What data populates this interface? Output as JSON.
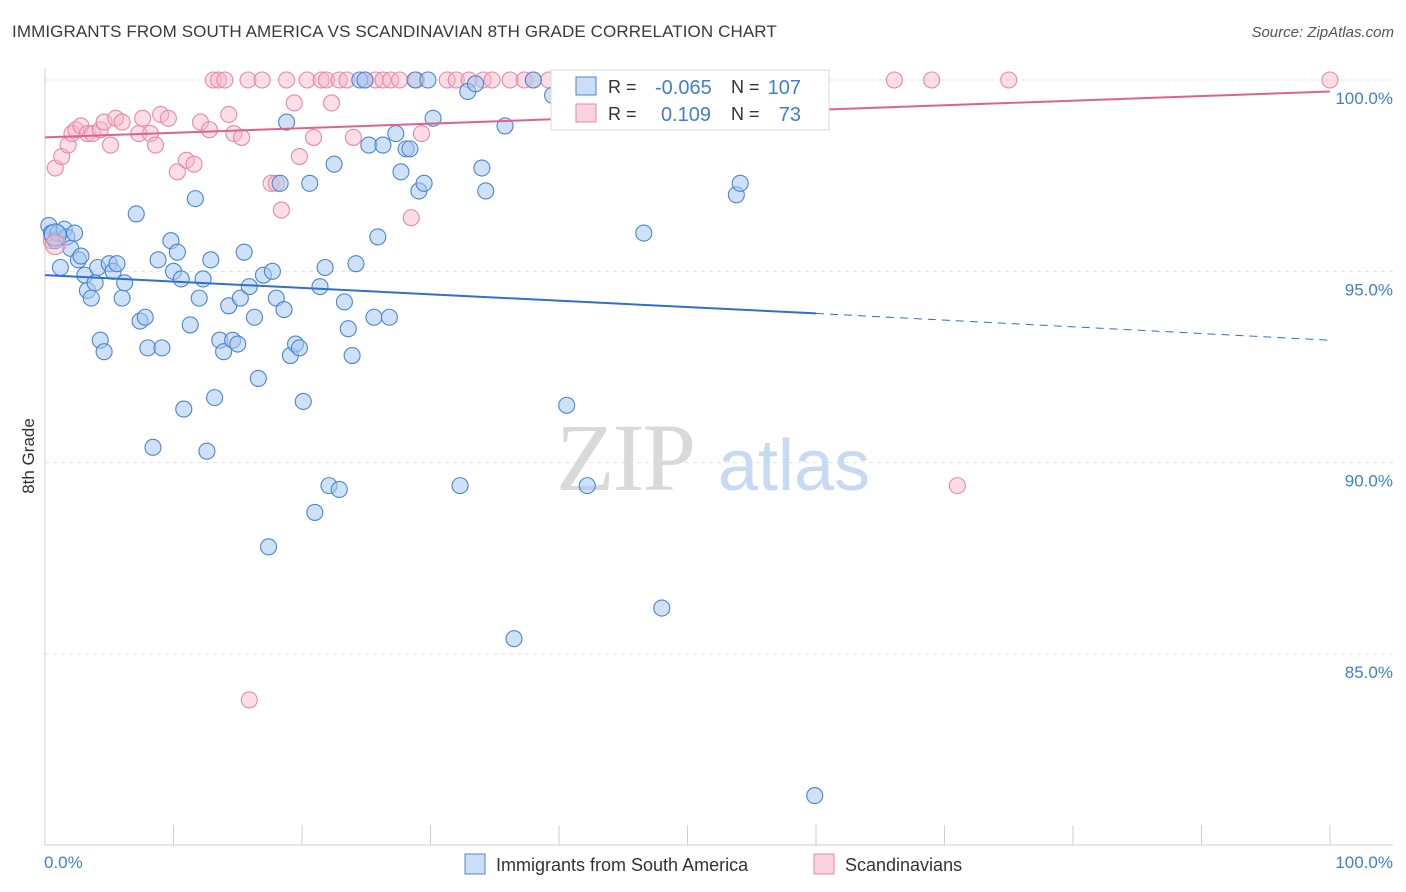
{
  "title": "IMMIGRANTS FROM SOUTH AMERICA VS SCANDINAVIAN 8TH GRADE CORRELATION CHART",
  "source": "Source: ZipAtlas.com",
  "watermark": {
    "zip": "ZIP",
    "atlas": "atlas"
  },
  "colors": {
    "blue": "#4a86d4",
    "pink": "#e8789c",
    "tick": "#3f7fd3"
  },
  "legend_top": [
    {
      "key": "blue",
      "r_label": "R =",
      "r_value": "-0.065",
      "n_label": "N =",
      "n_value": "107"
    },
    {
      "key": "pink",
      "r_label": "R =",
      "r_value": "0.109",
      "n_label": "N =",
      "n_value": "73"
    }
  ],
  "chart_data": {
    "type": "scatter",
    "ylabel": "8th Grade",
    "x_tick_labels": [
      "0.0%",
      "100.0%"
    ],
    "y_tick_labels": [
      "100.0%",
      "95.0%",
      "90.0%",
      "85.0%"
    ],
    "y_ticks": [
      100,
      95,
      90,
      85
    ],
    "xlim": [
      0,
      100
    ],
    "ylim": [
      80.4,
      100.8
    ],
    "grid": true,
    "legend_position": "bottom",
    "series": [
      {
        "name": "Immigrants from South America",
        "color": "#4a86d4",
        "trend": {
          "x0": 0,
          "y0": 94.9,
          "x1": 60,
          "y1": 93.9,
          "x_dash_end": 100,
          "y_dash_end": 93.2
        },
        "points": [
          [
            0.3,
            96.2
          ],
          [
            0.5,
            96.0
          ],
          [
            0.8,
            95.8
          ],
          [
            1.0,
            96.0
          ],
          [
            1.2,
            95.1
          ],
          [
            1.5,
            96.1
          ],
          [
            1.7,
            95.9
          ],
          [
            2.0,
            95.6
          ],
          [
            2.3,
            96.0
          ],
          [
            2.6,
            95.3
          ],
          [
            2.8,
            95.4
          ],
          [
            3.1,
            94.9
          ],
          [
            3.3,
            94.5
          ],
          [
            3.6,
            94.3
          ],
          [
            3.9,
            94.7
          ],
          [
            4.1,
            95.1
          ],
          [
            4.3,
            93.2
          ],
          [
            4.6,
            92.9
          ],
          [
            5.0,
            95.2
          ],
          [
            5.3,
            95.0
          ],
          [
            5.6,
            95.2
          ],
          [
            6.0,
            94.3
          ],
          [
            6.2,
            94.7
          ],
          [
            7.1,
            96.5
          ],
          [
            7.4,
            93.7
          ],
          [
            7.8,
            93.8
          ],
          [
            8.0,
            93.0
          ],
          [
            8.4,
            90.4
          ],
          [
            8.8,
            95.3
          ],
          [
            9.1,
            93.0
          ],
          [
            9.8,
            95.8
          ],
          [
            10.0,
            95.0
          ],
          [
            10.3,
            95.5
          ],
          [
            10.6,
            94.8
          ],
          [
            10.8,
            91.4
          ],
          [
            11.3,
            93.6
          ],
          [
            11.7,
            96.9
          ],
          [
            12.0,
            94.3
          ],
          [
            12.3,
            94.8
          ],
          [
            12.6,
            90.3
          ],
          [
            12.9,
            95.3
          ],
          [
            13.2,
            91.7
          ],
          [
            13.6,
            93.2
          ],
          [
            13.9,
            92.9
          ],
          [
            14.3,
            94.1
          ],
          [
            14.6,
            93.2
          ],
          [
            15.0,
            93.1
          ],
          [
            15.2,
            94.3
          ],
          [
            15.5,
            95.5
          ],
          [
            15.9,
            94.6
          ],
          [
            16.3,
            93.8
          ],
          [
            16.6,
            92.2
          ],
          [
            17.0,
            94.9
          ],
          [
            17.4,
            87.8
          ],
          [
            17.7,
            95.0
          ],
          [
            18.0,
            94.3
          ],
          [
            18.3,
            97.3
          ],
          [
            18.6,
            94.0
          ],
          [
            18.8,
            98.9
          ],
          [
            19.1,
            92.8
          ],
          [
            19.5,
            93.1
          ],
          [
            19.8,
            93.0
          ],
          [
            20.1,
            91.6
          ],
          [
            20.6,
            97.3
          ],
          [
            21.0,
            88.7
          ],
          [
            21.4,
            94.6
          ],
          [
            21.8,
            95.1
          ],
          [
            22.1,
            89.4
          ],
          [
            22.5,
            97.8
          ],
          [
            22.9,
            89.3
          ],
          [
            23.3,
            94.2
          ],
          [
            23.6,
            93.5
          ],
          [
            23.9,
            92.8
          ],
          [
            24.2,
            95.2
          ],
          [
            24.5,
            100.0
          ],
          [
            24.9,
            100.0
          ],
          [
            25.2,
            98.3
          ],
          [
            25.6,
            93.8
          ],
          [
            25.9,
            95.9
          ],
          [
            26.3,
            98.3
          ],
          [
            26.8,
            93.8
          ],
          [
            27.3,
            98.6
          ],
          [
            27.7,
            97.6
          ],
          [
            28.1,
            98.2
          ],
          [
            28.4,
            98.2
          ],
          [
            28.8,
            100.0
          ],
          [
            29.1,
            97.1
          ],
          [
            29.5,
            97.3
          ],
          [
            29.8,
            100.0
          ],
          [
            30.2,
            99.0
          ],
          [
            32.3,
            89.4
          ],
          [
            32.9,
            99.7
          ],
          [
            33.5,
            99.9
          ],
          [
            34.0,
            97.7
          ],
          [
            34.3,
            97.1
          ],
          [
            35.8,
            98.8
          ],
          [
            36.5,
            85.4
          ],
          [
            38.0,
            100.0
          ],
          [
            39.5,
            99.6
          ],
          [
            40.6,
            91.5
          ],
          [
            42.2,
            89.4
          ],
          [
            46.6,
            96.0
          ],
          [
            48.0,
            86.2
          ],
          [
            53.8,
            97.0
          ],
          [
            54.1,
            97.3
          ],
          [
            59.9,
            81.3
          ]
        ]
      },
      {
        "name": "Scandinavians",
        "color": "#e8789c",
        "trend": {
          "x0": 0,
          "y0": 98.5,
          "x1": 100,
          "y1": 99.7
        },
        "points": [
          [
            0.5,
            95.8
          ],
          [
            0.8,
            97.7
          ],
          [
            1.3,
            98.0
          ],
          [
            1.8,
            98.3
          ],
          [
            2.1,
            98.6
          ],
          [
            2.4,
            98.7
          ],
          [
            2.8,
            98.8
          ],
          [
            3.3,
            98.6
          ],
          [
            3.7,
            98.6
          ],
          [
            4.3,
            98.7
          ],
          [
            4.6,
            98.9
          ],
          [
            5.1,
            98.3
          ],
          [
            5.5,
            99.0
          ],
          [
            6.0,
            98.9
          ],
          [
            7.3,
            98.6
          ],
          [
            7.6,
            99.0
          ],
          [
            8.2,
            98.6
          ],
          [
            8.6,
            98.3
          ],
          [
            9.0,
            99.1
          ],
          [
            9.6,
            99.0
          ],
          [
            10.3,
            97.6
          ],
          [
            11.0,
            97.9
          ],
          [
            11.6,
            97.8
          ],
          [
            12.1,
            98.9
          ],
          [
            12.8,
            98.7
          ],
          [
            13.1,
            100.0
          ],
          [
            13.5,
            100.0
          ],
          [
            14.0,
            100.0
          ],
          [
            14.3,
            99.1
          ],
          [
            14.7,
            98.6
          ],
          [
            15.3,
            98.5
          ],
          [
            15.8,
            100.0
          ],
          [
            16.9,
            100.0
          ],
          [
            17.6,
            97.3
          ],
          [
            18.0,
            97.3
          ],
          [
            18.4,
            96.6
          ],
          [
            18.8,
            100.0
          ],
          [
            19.4,
            99.4
          ],
          [
            19.8,
            98.0
          ],
          [
            20.4,
            100.0
          ],
          [
            20.9,
            98.5
          ],
          [
            21.5,
            100.0
          ],
          [
            21.9,
            100.0
          ],
          [
            22.3,
            99.4
          ],
          [
            22.9,
            100.0
          ],
          [
            23.5,
            100.0
          ],
          [
            24.0,
            98.5
          ],
          [
            24.9,
            100.0
          ],
          [
            25.7,
            100.0
          ],
          [
            26.3,
            100.0
          ],
          [
            26.9,
            100.0
          ],
          [
            27.6,
            100.0
          ],
          [
            28.5,
            96.4
          ],
          [
            28.9,
            100.0
          ],
          [
            29.3,
            98.6
          ],
          [
            31.3,
            100.0
          ],
          [
            32.0,
            100.0
          ],
          [
            33.0,
            100.0
          ],
          [
            34.1,
            100.0
          ],
          [
            34.8,
            100.0
          ],
          [
            36.2,
            100.0
          ],
          [
            37.3,
            100.0
          ],
          [
            38.0,
            100.0
          ],
          [
            39.2,
            100.0
          ],
          [
            41.4,
            100.0
          ],
          [
            42.1,
            100.0
          ],
          [
            47.2,
            100.0
          ],
          [
            50.4,
            100.0
          ],
          [
            52.8,
            100.0
          ],
          [
            66.1,
            100.0
          ],
          [
            69.0,
            100.0
          ],
          [
            71.0,
            89.4
          ],
          [
            75.0,
            100.0
          ]
        ]
      }
    ],
    "extra_pink_points": [
      [
        100,
        100.0
      ],
      [
        15.9,
        83.8
      ]
    ]
  }
}
